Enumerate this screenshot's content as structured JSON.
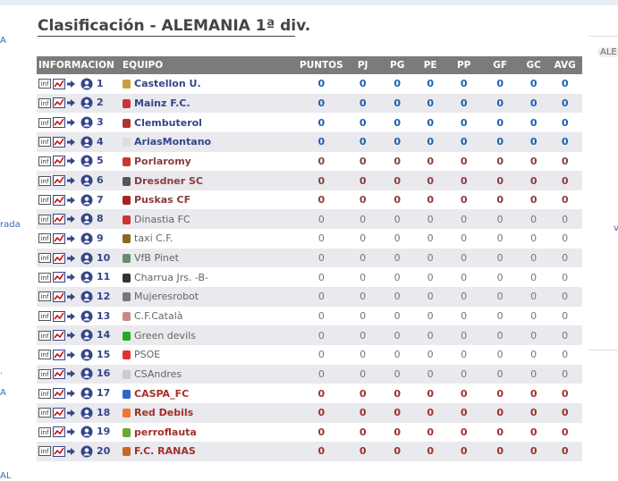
{
  "header": {
    "title": "Clasificación - ALEMANIA 1ª div."
  },
  "side_fragments": {
    "left": [
      "A",
      "rada",
      ".",
      "A",
      "AL"
    ],
    "right": [
      "ALE",
      "v"
    ]
  },
  "table": {
    "columns": [
      "INFORMACION",
      "EQUIPO",
      "PUNTOS",
      "PJ",
      "PG",
      "PE",
      "PP",
      "GF",
      "GC",
      "AVG"
    ],
    "rows": [
      [
        1,
        "Castellon U.",
        0,
        0,
        0,
        0,
        0,
        0,
        0,
        0
      ],
      [
        2,
        "Mainz F.C.",
        0,
        0,
        0,
        0,
        0,
        0,
        0,
        0
      ],
      [
        3,
        "Clembuterol",
        0,
        0,
        0,
        0,
        0,
        0,
        0,
        0
      ],
      [
        4,
        "AriasMontano",
        0,
        0,
        0,
        0,
        0,
        0,
        0,
        0
      ],
      [
        5,
        "Porlaromy",
        0,
        0,
        0,
        0,
        0,
        0,
        0,
        0
      ],
      [
        6,
        "Dresdner SC",
        0,
        0,
        0,
        0,
        0,
        0,
        0,
        0
      ],
      [
        7,
        "Puskas CF",
        0,
        0,
        0,
        0,
        0,
        0,
        0,
        0
      ],
      [
        8,
        "Dinastia FC",
        0,
        0,
        0,
        0,
        0,
        0,
        0,
        0
      ],
      [
        9,
        "taxi C.F.",
        0,
        0,
        0,
        0,
        0,
        0,
        0,
        0
      ],
      [
        10,
        "VfB Pinet",
        0,
        0,
        0,
        0,
        0,
        0,
        0,
        0
      ],
      [
        11,
        "Charrua Jrs. -B-",
        0,
        0,
        0,
        0,
        0,
        0,
        0,
        0
      ],
      [
        12,
        "Mujeresrobot",
        0,
        0,
        0,
        0,
        0,
        0,
        0,
        0
      ],
      [
        13,
        "C.F.Català",
        0,
        0,
        0,
        0,
        0,
        0,
        0,
        0
      ],
      [
        14,
        "Green devils",
        0,
        0,
        0,
        0,
        0,
        0,
        0,
        0
      ],
      [
        15,
        "PSOE",
        0,
        0,
        0,
        0,
        0,
        0,
        0,
        0
      ],
      [
        16,
        "CSAndres",
        0,
        0,
        0,
        0,
        0,
        0,
        0,
        0
      ],
      [
        17,
        "CASPA_FC",
        0,
        0,
        0,
        0,
        0,
        0,
        0,
        0
      ],
      [
        18,
        "Red Debils",
        0,
        0,
        0,
        0,
        0,
        0,
        0,
        0
      ],
      [
        19,
        "perroflauta",
        0,
        0,
        0,
        0,
        0,
        0,
        0,
        0
      ],
      [
        20,
        "F.C. RANAS",
        0,
        0,
        0,
        0,
        0,
        0,
        0,
        0
      ]
    ]
  }
}
